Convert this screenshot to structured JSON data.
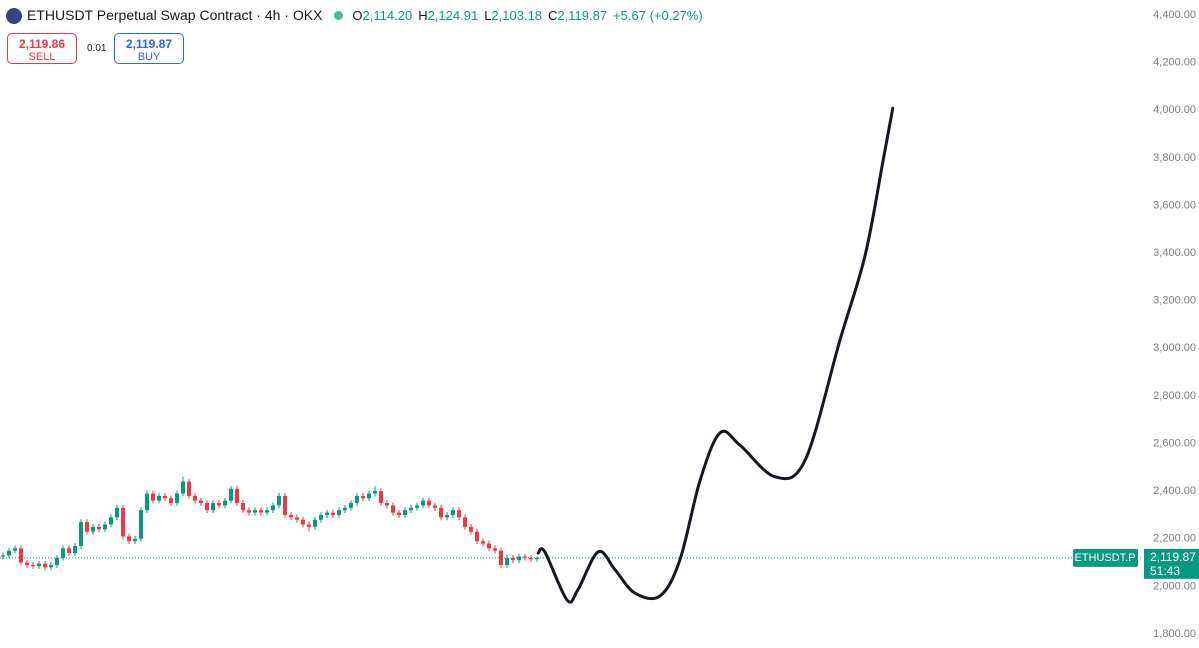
{
  "header": {
    "title": "ETHUSDT Perpetual Swap Contract · 4h · OKX",
    "legend": [
      {
        "key": "O",
        "value": "2,114.20"
      },
      {
        "key": "H",
        "value": "2,124.91"
      },
      {
        "key": "L",
        "value": "2,103.18"
      },
      {
        "key": "C",
        "value": "2,119.87"
      }
    ],
    "change": "+5.67 (+0.27%)",
    "sell": {
      "price": "2,119.86",
      "label": "SELL"
    },
    "spread": "0.01",
    "buy": {
      "price": "2,119.87",
      "label": "BUY"
    }
  },
  "chart_data": {
    "type": "candlestick",
    "up_color": "#089981",
    "down_color": "#f23645",
    "candles": [
      [
        2125,
        2142,
        2113,
        2130
      ],
      [
        2130,
        2162,
        2118,
        2150
      ],
      [
        2150,
        2172,
        2138,
        2160
      ],
      [
        2160,
        2172,
        2088,
        2100
      ],
      [
        2100,
        2112,
        2078,
        2090
      ],
      [
        2090,
        2102,
        2073,
        2085
      ],
      [
        2085,
        2107,
        2073,
        2095
      ],
      [
        2095,
        2107,
        2068,
        2080
      ],
      [
        2080,
        2102,
        2068,
        2090
      ],
      [
        2090,
        2132,
        2078,
        2120
      ],
      [
        2120,
        2172,
        2108,
        2160
      ],
      [
        2160,
        2172,
        2128,
        2140
      ],
      [
        2140,
        2182,
        2128,
        2170
      ],
      [
        2170,
        2282,
        2158,
        2270
      ],
      [
        2270,
        2282,
        2218,
        2230
      ],
      [
        2230,
        2262,
        2218,
        2250
      ],
      [
        2250,
        2262,
        2228,
        2240
      ],
      [
        2240,
        2272,
        2228,
        2260
      ],
      [
        2260,
        2302,
        2248,
        2290
      ],
      [
        2290,
        2342,
        2278,
        2330
      ],
      [
        2330,
        2342,
        2198,
        2210
      ],
      [
        2210,
        2222,
        2178,
        2190
      ],
      [
        2190,
        2212,
        2178,
        2200
      ],
      [
        2200,
        2332,
        2188,
        2320
      ],
      [
        2320,
        2402,
        2308,
        2390
      ],
      [
        2390,
        2402,
        2348,
        2360
      ],
      [
        2360,
        2392,
        2348,
        2380
      ],
      [
        2380,
        2392,
        2358,
        2370
      ],
      [
        2370,
        2382,
        2338,
        2350
      ],
      [
        2350,
        2402,
        2338,
        2390
      ],
      [
        2390,
        2460,
        2378,
        2440
      ],
      [
        2440,
        2452,
        2368,
        2380
      ],
      [
        2380,
        2392,
        2348,
        2360
      ],
      [
        2360,
        2372,
        2338,
        2350
      ],
      [
        2350,
        2362,
        2308,
        2320
      ],
      [
        2320,
        2362,
        2308,
        2350
      ],
      [
        2350,
        2362,
        2328,
        2340
      ],
      [
        2340,
        2372,
        2328,
        2360
      ],
      [
        2360,
        2422,
        2348,
        2410
      ],
      [
        2410,
        2422,
        2338,
        2350
      ],
      [
        2350,
        2362,
        2308,
        2320
      ],
      [
        2320,
        2332,
        2298,
        2310
      ],
      [
        2310,
        2332,
        2298,
        2320
      ],
      [
        2320,
        2332,
        2298,
        2310
      ],
      [
        2310,
        2332,
        2298,
        2320
      ],
      [
        2320,
        2352,
        2308,
        2340
      ],
      [
        2340,
        2392,
        2328,
        2380
      ],
      [
        2380,
        2392,
        2288,
        2300
      ],
      [
        2300,
        2312,
        2278,
        2290
      ],
      [
        2290,
        2302,
        2268,
        2280
      ],
      [
        2280,
        2292,
        2248,
        2260
      ],
      [
        2260,
        2272,
        2230,
        2250
      ],
      [
        2250,
        2292,
        2238,
        2280
      ],
      [
        2280,
        2312,
        2268,
        2300
      ],
      [
        2300,
        2322,
        2288,
        2310
      ],
      [
        2310,
        2322,
        2288,
        2300
      ],
      [
        2300,
        2332,
        2288,
        2320
      ],
      [
        2320,
        2342,
        2308,
        2330
      ],
      [
        2330,
        2362,
        2318,
        2350
      ],
      [
        2350,
        2392,
        2338,
        2380
      ],
      [
        2380,
        2392,
        2358,
        2370
      ],
      [
        2370,
        2402,
        2358,
        2390
      ],
      [
        2390,
        2420,
        2378,
        2400
      ],
      [
        2400,
        2412,
        2338,
        2350
      ],
      [
        2350,
        2362,
        2328,
        2340
      ],
      [
        2340,
        2352,
        2298,
        2310
      ],
      [
        2310,
        2322,
        2288,
        2300
      ],
      [
        2300,
        2332,
        2288,
        2320
      ],
      [
        2320,
        2342,
        2308,
        2330
      ],
      [
        2330,
        2352,
        2318,
        2340
      ],
      [
        2340,
        2372,
        2328,
        2360
      ],
      [
        2360,
        2372,
        2328,
        2340
      ],
      [
        2340,
        2352,
        2318,
        2330
      ],
      [
        2330,
        2342,
        2278,
        2290
      ],
      [
        2290,
        2312,
        2278,
        2300
      ],
      [
        2300,
        2332,
        2288,
        2320
      ],
      [
        2320,
        2332,
        2278,
        2290
      ],
      [
        2290,
        2302,
        2238,
        2250
      ],
      [
        2250,
        2262,
        2218,
        2230
      ],
      [
        2230,
        2242,
        2178,
        2190
      ],
      [
        2190,
        2202,
        2168,
        2180
      ],
      [
        2180,
        2192,
        2148,
        2160
      ],
      [
        2160,
        2172,
        2138,
        2150
      ],
      [
        2150,
        2162,
        2078,
        2090
      ],
      [
        2090,
        2132,
        2078,
        2120
      ],
      [
        2120,
        2132,
        2098,
        2110
      ],
      [
        2110,
        2137,
        2098,
        2125
      ],
      [
        2125,
        2137,
        2108,
        2120
      ],
      [
        2120,
        2132,
        2102,
        2114.2
      ],
      [
        2114.2,
        2124.91,
        2103.18,
        2119.87
      ]
    ],
    "drawing": {
      "color": "#131722",
      "x": [
        89.2,
        90.3,
        94,
        95.8,
        99.2,
        102,
        105.3,
        109.5,
        112.8,
        116.2,
        119.5,
        122.8,
        128.7,
        133.7,
        139.5,
        143.7,
        146.7,
        148.3
      ],
      "y": [
        2140,
        2145,
        1943,
        1985,
        2145,
        2070,
        1972,
        1960,
        2110,
        2447,
        2645,
        2594,
        2460,
        2531,
        3035,
        3392,
        3791,
        4009
      ]
    },
    "ylim": [
      1800,
      4400
    ],
    "yticks": [
      {
        "value": 1800,
        "label": "1,800.00"
      },
      {
        "value": 2000,
        "label": "2,000.00"
      },
      {
        "value": 2200,
        "label": "2,200.00"
      },
      {
        "value": 2400,
        "label": "2,400.00"
      },
      {
        "value": 2600,
        "label": "2,600.00"
      },
      {
        "value": 2800,
        "label": "2,800.00"
      },
      {
        "value": 3000,
        "label": "3,000.00"
      },
      {
        "value": 3200,
        "label": "3,200.00"
      },
      {
        "value": 3400,
        "label": "3,400.00"
      },
      {
        "value": 3600,
        "label": "3,600.00"
      },
      {
        "value": 3800,
        "label": "3,800.00"
      },
      {
        "value": 4000,
        "label": "4,000.00"
      },
      {
        "value": 4200,
        "label": "4,200.00"
      },
      {
        "value": 4400,
        "label": "4,400.00"
      }
    ],
    "last_price": {
      "value": 2119.87,
      "label": "2,119.87"
    },
    "symbol_tag": "ETHUSDT.P",
    "countdown": "51:43"
  }
}
